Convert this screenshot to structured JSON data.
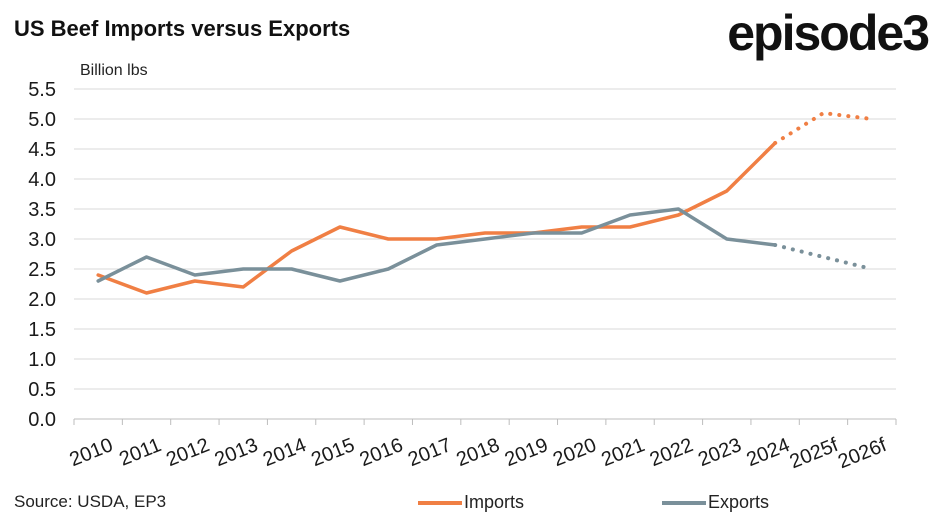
{
  "title": "US Beef Imports versus Exports",
  "logo": "episode3",
  "footer": {
    "source": "Source: USDA, EP3"
  },
  "chart_data": {
    "type": "line",
    "ylabel": "Billion lbs",
    "ylim": [
      0,
      5.5
    ],
    "yticks": [
      "0.0",
      "0.5",
      "1.0",
      "1.5",
      "2.0",
      "2.5",
      "3.0",
      "3.5",
      "4.0",
      "4.5",
      "5.0",
      "5.5"
    ],
    "categories": [
      "2010",
      "2011",
      "2012",
      "2013",
      "2014",
      "2015",
      "2016",
      "2017",
      "2018",
      "2019",
      "2020",
      "2021",
      "2022",
      "2023",
      "2024",
      "2025f",
      "2026f"
    ],
    "grid": true,
    "legend": "bottom",
    "forecast_from_index": 14,
    "series": [
      {
        "name": "Imports",
        "color": "#f07f44",
        "values": [
          2.4,
          2.1,
          2.3,
          2.2,
          2.8,
          3.2,
          3.0,
          3.0,
          3.1,
          3.1,
          3.2,
          3.2,
          3.4,
          3.8,
          4.6,
          5.1,
          5.0
        ]
      },
      {
        "name": "Exports",
        "color": "#7a909a",
        "values": [
          2.3,
          2.7,
          2.4,
          2.5,
          2.5,
          2.3,
          2.5,
          2.9,
          3.0,
          3.1,
          3.1,
          3.4,
          3.5,
          3.0,
          2.9,
          2.7,
          2.5
        ]
      }
    ]
  }
}
